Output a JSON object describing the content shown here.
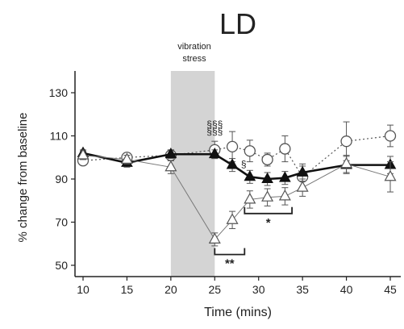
{
  "colors": {
    "background": "#ffffff",
    "axis": "#222222",
    "stress_band": "#d4d4d4",
    "filled_marker": "#111111",
    "open_marker_fill": "#ffffff",
    "open_marker_stroke": "#555555",
    "error_bar": "#555555"
  },
  "chart_data": {
    "type": "line",
    "title": "LD",
    "xlabel": "Time (mins)",
    "ylabel": "% change from baseline",
    "xlim": [
      8,
      46
    ],
    "ylim": [
      46,
      140
    ],
    "xticks": [
      10,
      15,
      20,
      25,
      30,
      35,
      40,
      45
    ],
    "yticks": [
      50,
      70,
      90,
      110,
      130
    ],
    "grid": false,
    "legend": "none",
    "shaded_region": {
      "x": [
        20,
        25
      ],
      "label_line1": "vibration",
      "label_line2": "stress"
    },
    "series": [
      {
        "marker": "circle-open",
        "line_style": "dotted",
        "points": [
          {
            "x": 10,
            "y": 98.5,
            "err": 2
          },
          {
            "x": 15,
            "y": 100,
            "err": 2
          },
          {
            "x": 20,
            "y": 101,
            "err": 2.5
          },
          {
            "x": 25,
            "y": 103.5,
            "err": 4
          },
          {
            "x": 27,
            "y": 105,
            "err": 7
          },
          {
            "x": 29,
            "y": 103,
            "err": 5
          },
          {
            "x": 31,
            "y": 99,
            "err": 3
          },
          {
            "x": 33,
            "y": 104,
            "err": 6
          },
          {
            "x": 35,
            "y": 91,
            "err": 5
          },
          {
            "x": 40,
            "y": 107.5,
            "err": 9
          },
          {
            "x": 45,
            "y": 110,
            "err": 5
          }
        ]
      },
      {
        "marker": "triangle-filled",
        "line_style": "solid-thick",
        "points": [
          {
            "x": 10,
            "y": 102,
            "err": 1.5
          },
          {
            "x": 15,
            "y": 97.5,
            "err": 2
          },
          {
            "x": 20,
            "y": 101.5,
            "err": 2
          },
          {
            "x": 25,
            "y": 101.5,
            "err": 2
          },
          {
            "x": 27,
            "y": 96.5,
            "err": 3
          },
          {
            "x": 29,
            "y": 91,
            "err": 3
          },
          {
            "x": 31,
            "y": 90,
            "err": 3
          },
          {
            "x": 33,
            "y": 90.5,
            "err": 3
          },
          {
            "x": 35,
            "y": 93,
            "err": 4
          },
          {
            "x": 40,
            "y": 96.5,
            "err": 4
          },
          {
            "x": 45,
            "y": 96.5,
            "err": 4
          }
        ]
      },
      {
        "marker": "triangle-open",
        "line_style": "solid-thin",
        "points": [
          {
            "x": 10,
            "y": 101,
            "err": 2
          },
          {
            "x": 15,
            "y": 99,
            "err": 2
          },
          {
            "x": 20,
            "y": 95.5,
            "err": 3
          },
          {
            "x": 25,
            "y": 62,
            "err": 3
          },
          {
            "x": 27,
            "y": 71,
            "err": 4
          },
          {
            "x": 29,
            "y": 80.5,
            "err": 4
          },
          {
            "x": 31,
            "y": 81.5,
            "err": 4
          },
          {
            "x": 33,
            "y": 82,
            "err": 4
          },
          {
            "x": 35,
            "y": 86,
            "err": 4
          },
          {
            "x": 40,
            "y": 97,
            "err": 4
          },
          {
            "x": 45,
            "y": 91,
            "err": 7
          }
        ]
      }
    ],
    "annotations": [
      {
        "text": "§§§",
        "x": 25,
        "y": 114
      },
      {
        "text": "§§§",
        "x": 25,
        "y": 110.5
      },
      {
        "text": "§",
        "x": 28.3,
        "y": 95.5
      }
    ],
    "brackets": [
      {
        "x_start": 25,
        "x_end": 28.4,
        "y": 55,
        "label": "**"
      },
      {
        "x_start": 28.4,
        "x_end": 33.8,
        "y": 74,
        "label": "*"
      }
    ]
  }
}
